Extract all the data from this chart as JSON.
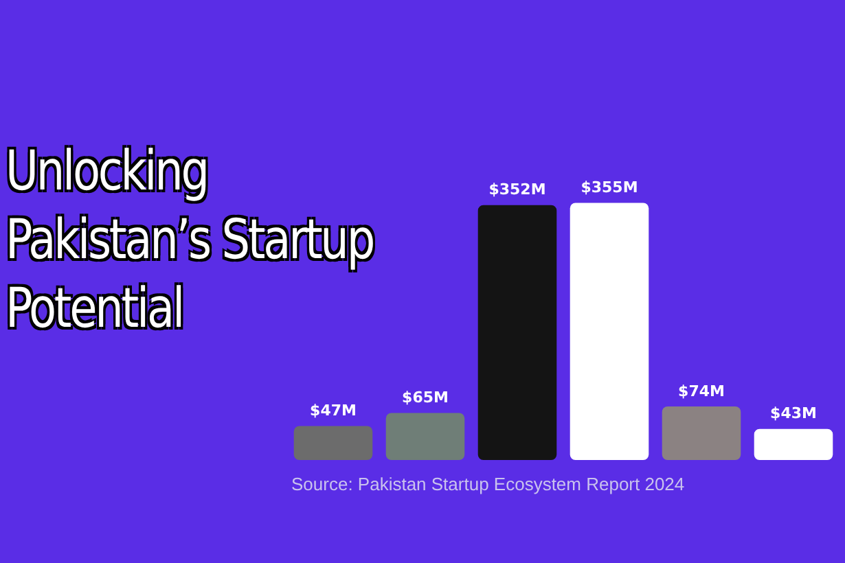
{
  "chart_data": {
    "type": "bar",
    "title": "Unlocking Pakistan’s Startup Potential",
    "categories": [
      null,
      null,
      null,
      null,
      null,
      null
    ],
    "values": [
      47,
      65,
      352,
      355,
      74,
      43
    ],
    "colors": [
      "#6c6c6c",
      "#6f7e77",
      "#141414",
      "#ffffff",
      "#8b8282",
      "#ffffff"
    ],
    "value_labels": [
      "$47M",
      "$65M",
      "$352M",
      "$355M",
      "$74M",
      "$43M"
    ],
    "annotations": [
      "Source: Pakistan Startup Ecosystem Report 2024"
    ],
    "legend": false
  }
}
